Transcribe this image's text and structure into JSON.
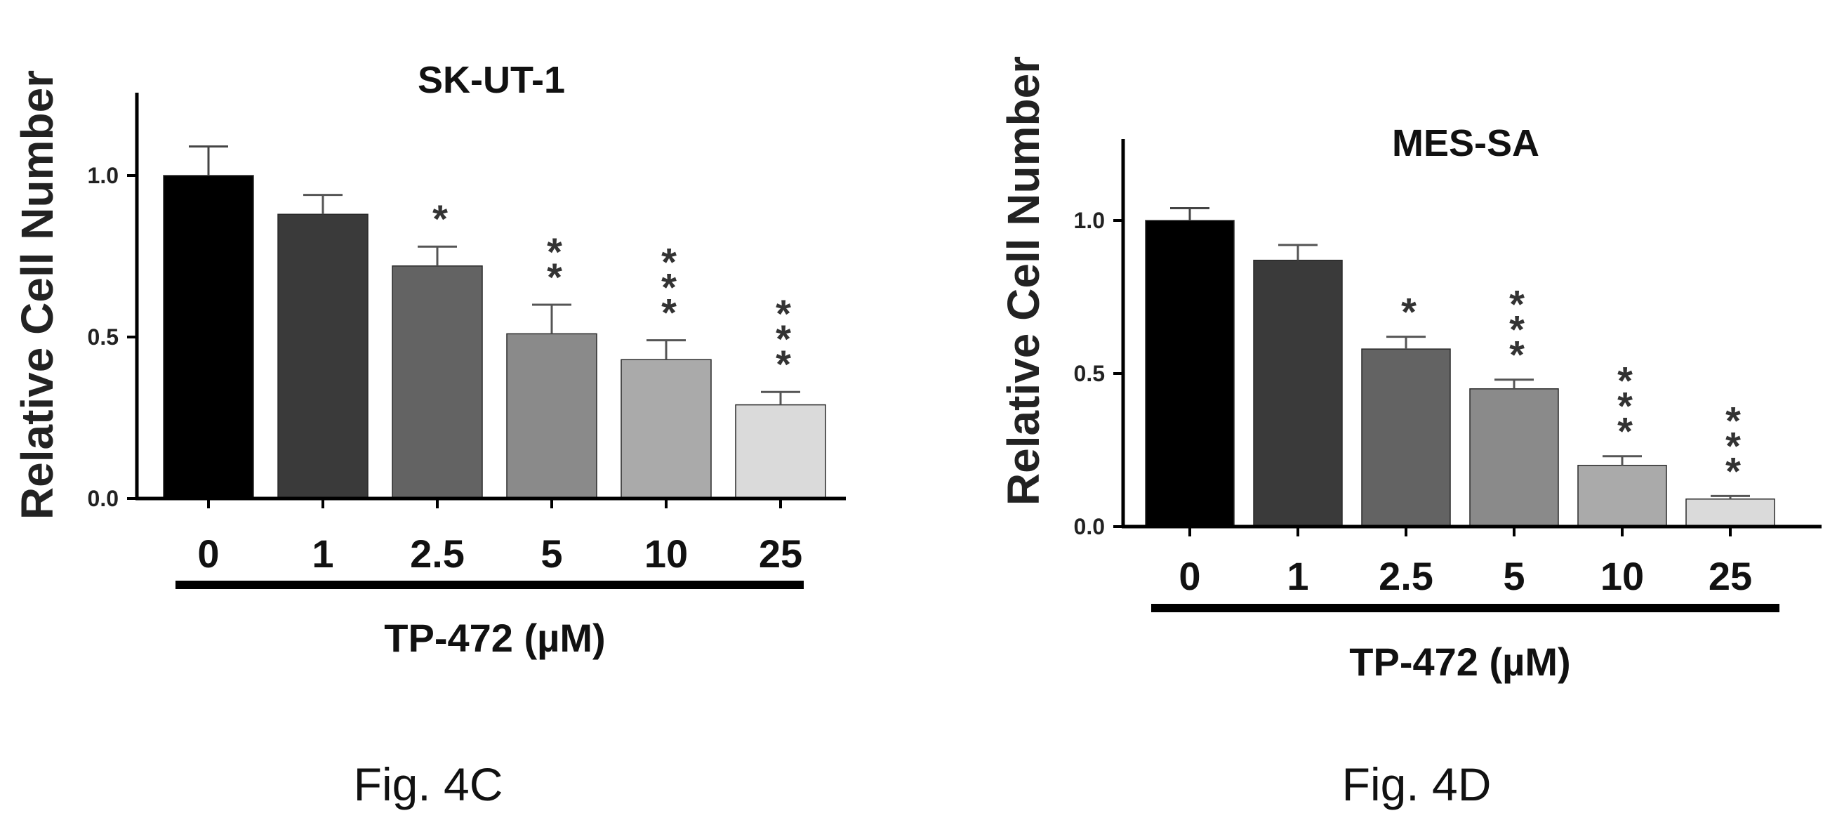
{
  "chart_data": [
    {
      "type": "bar",
      "title": "SK-UT-1",
      "ylabel": "Relative Cell Number",
      "xlabel": "TP-472 (µM)",
      "categories": [
        "0",
        "1",
        "2.5",
        "5",
        "10",
        "25"
      ],
      "values": [
        1.0,
        0.88,
        0.72,
        0.51,
        0.43,
        0.29
      ],
      "error": [
        0.09,
        0.06,
        0.06,
        0.09,
        0.06,
        0.04
      ],
      "significance": [
        "",
        "",
        "*",
        "**",
        "***",
        "***"
      ],
      "ylim": [
        0,
        1.25
      ],
      "yticks": [
        "0.0",
        "0.5",
        "1.0"
      ],
      "bar_colors": [
        "#000000",
        "#3a3a3a",
        "#636363",
        "#8a8a8a",
        "#aaaaaa",
        "#dadada"
      ],
      "caption": "Fig. 4C"
    },
    {
      "type": "bar",
      "title": "MES-SA",
      "ylabel": "Relative Cell Number",
      "xlabel": "TP-472 (µM)",
      "categories": [
        "0",
        "1",
        "2.5",
        "5",
        "10",
        "25"
      ],
      "values": [
        1.0,
        0.87,
        0.58,
        0.45,
        0.2,
        0.09
      ],
      "error": [
        0.04,
        0.05,
        0.04,
        0.03,
        0.03,
        0.01
      ],
      "significance": [
        "",
        "",
        "*",
        "***",
        "***",
        "***"
      ],
      "ylim": [
        0,
        1.25
      ],
      "yticks": [
        "0.0",
        "0.5",
        "1.0"
      ],
      "bar_colors": [
        "#000000",
        "#3a3a3a",
        "#636363",
        "#8a8a8a",
        "#aaaaaa",
        "#dadada"
      ],
      "caption": "Fig. 4D"
    }
  ]
}
